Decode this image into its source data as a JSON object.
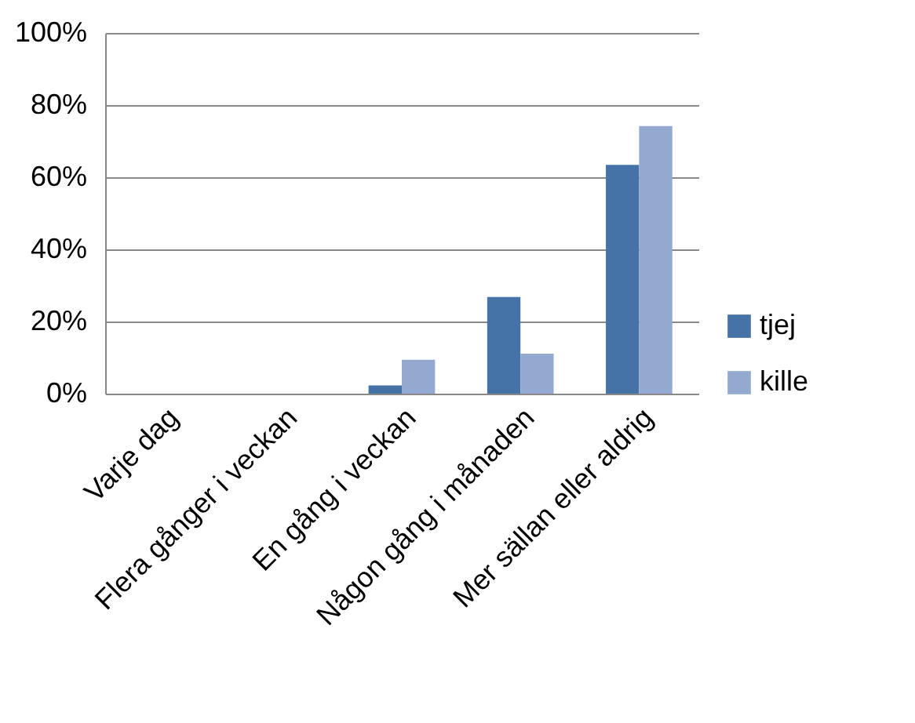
{
  "chart_data": {
    "type": "bar",
    "categories": [
      "Varje dag",
      "Flera gånger i veckan",
      "En gång i veckan",
      "Någon gång i månaden",
      "Mer sällan eller aldrig"
    ],
    "series": [
      {
        "name": "tjej",
        "color": "#4572a7",
        "values": [
          0,
          0,
          2.3,
          26.8,
          63.4
        ]
      },
      {
        "name": "kille",
        "color": "#93a9cf",
        "values": [
          0,
          0,
          9.4,
          11.1,
          74.2
        ]
      }
    ],
    "ylim": [
      0,
      100
    ],
    "yticks": [
      {
        "value": 0,
        "label": "0%"
      },
      {
        "value": 20,
        "label": "20%"
      },
      {
        "value": 40,
        "label": "40%"
      },
      {
        "value": 60,
        "label": "60%"
      },
      {
        "value": 80,
        "label": "80%"
      },
      {
        "value": 100,
        "label": "100%"
      }
    ],
    "grid": "y",
    "legend": "right"
  }
}
